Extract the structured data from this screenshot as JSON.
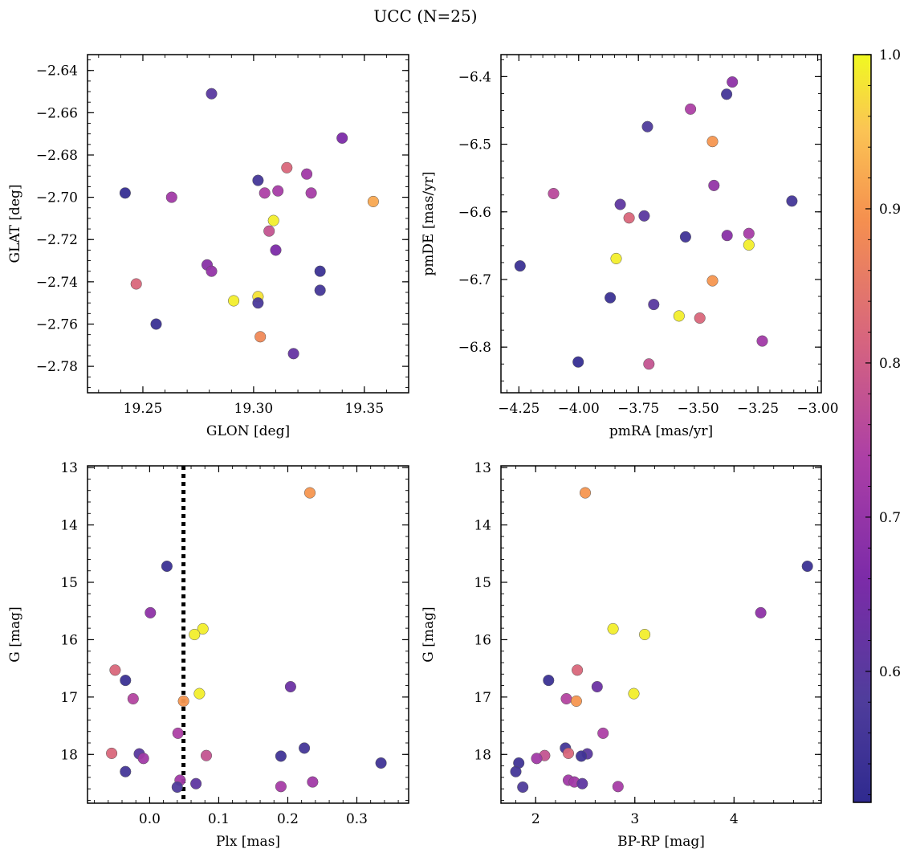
{
  "figure": {
    "suptitle": "UCC (N=25)",
    "colorbar": {
      "min": 0.515,
      "max": 1.0,
      "ticks": [
        0.6,
        0.7,
        0.8,
        0.9,
        1.0
      ],
      "tick_labels": [
        "0.6",
        "0.7",
        "0.8",
        "0.9",
        "1.0"
      ],
      "colormap": "plasma"
    }
  },
  "chart_data": [
    {
      "type": "scatter",
      "id": "glon-glat",
      "xlabel": "GLON [deg]",
      "ylabel": "GLAT [deg]",
      "xlim": [
        19.225,
        19.37
      ],
      "ylim": [
        -2.7925,
        -2.6325
      ],
      "xticks": [
        19.25,
        19.3,
        19.35
      ],
      "xtick_labels": [
        "19.25",
        "19.30",
        "19.35"
      ],
      "yticks": [
        -2.64,
        -2.66,
        -2.68,
        -2.7,
        -2.72,
        -2.74,
        -2.76,
        -2.78
      ],
      "ytick_labels": [
        "−2.64",
        "−2.66",
        "−2.68",
        "−2.70",
        "−2.72",
        "−2.74",
        "−2.76",
        "−2.78"
      ],
      "inverted_y": false,
      "points": [
        {
          "x": 19.242,
          "y": -2.698,
          "c": 0.53
        },
        {
          "x": 19.256,
          "y": -2.76,
          "c": 0.54
        },
        {
          "x": 19.247,
          "y": -2.741,
          "c": 0.82
        },
        {
          "x": 19.263,
          "y": -2.7,
          "c": 0.72
        },
        {
          "x": 19.279,
          "y": -2.732,
          "c": 0.68
        },
        {
          "x": 19.281,
          "y": -2.735,
          "c": 0.7
        },
        {
          "x": 19.281,
          "y": -2.651,
          "c": 0.6
        },
        {
          "x": 19.291,
          "y": -2.749,
          "c": 0.99
        },
        {
          "x": 19.302,
          "y": -2.747,
          "c": 0.98
        },
        {
          "x": 19.302,
          "y": -2.75,
          "c": 0.57
        },
        {
          "x": 19.302,
          "y": -2.692,
          "c": 0.56
        },
        {
          "x": 19.303,
          "y": -2.766,
          "c": 0.88
        },
        {
          "x": 19.305,
          "y": -2.698,
          "c": 0.74
        },
        {
          "x": 19.307,
          "y": -2.716,
          "c": 0.78
        },
        {
          "x": 19.309,
          "y": -2.711,
          "c": 0.99
        },
        {
          "x": 19.31,
          "y": -2.725,
          "c": 0.66
        },
        {
          "x": 19.311,
          "y": -2.697,
          "c": 0.73
        },
        {
          "x": 19.315,
          "y": -2.686,
          "c": 0.82
        },
        {
          "x": 19.318,
          "y": -2.774,
          "c": 0.62
        },
        {
          "x": 19.324,
          "y": -2.689,
          "c": 0.72
        },
        {
          "x": 19.326,
          "y": -2.698,
          "c": 0.73
        },
        {
          "x": 19.33,
          "y": -2.735,
          "c": 0.54
        },
        {
          "x": 19.33,
          "y": -2.744,
          "c": 0.56
        },
        {
          "x": 19.34,
          "y": -2.672,
          "c": 0.66
        },
        {
          "x": 19.354,
          "y": -2.702,
          "c": 0.92
        }
      ]
    },
    {
      "type": "scatter",
      "id": "pmra-pmde",
      "xlabel": "pmRA [mas/yr]",
      "ylabel": "pmDE [mas/yr]",
      "xlim": [
        -4.325,
        -2.985
      ],
      "ylim": [
        -6.8675,
        -6.3675
      ],
      "xticks": [
        -4.25,
        -4.0,
        -3.75,
        -3.5,
        -3.25,
        -3.0
      ],
      "xtick_labels": [
        "−4.25",
        "−4.00",
        "−3.75",
        "−3.50",
        "−3.25",
        "−3.00"
      ],
      "yticks": [
        -6.4,
        -6.5,
        -6.6,
        -6.7,
        -6.8
      ],
      "ytick_labels": [
        "−6.4",
        "−6.5",
        "−6.6",
        "−6.7",
        "−6.8"
      ],
      "inverted_y": false,
      "points": [
        {
          "x": -4.245,
          "y": -6.68,
          "c": 0.54
        },
        {
          "x": -4.105,
          "y": -6.573,
          "c": 0.76
        },
        {
          "x": -4.002,
          "y": -6.822,
          "c": 0.53
        },
        {
          "x": -3.868,
          "y": -6.727,
          "c": 0.54
        },
        {
          "x": -3.843,
          "y": -6.669,
          "c": 0.99
        },
        {
          "x": -3.826,
          "y": -6.589,
          "c": 0.61
        },
        {
          "x": -3.789,
          "y": -6.609,
          "c": 0.82
        },
        {
          "x": -3.726,
          "y": -6.606,
          "c": 0.6
        },
        {
          "x": -3.712,
          "y": -6.474,
          "c": 0.58
        },
        {
          "x": -3.706,
          "y": -6.825,
          "c": 0.78
        },
        {
          "x": -3.686,
          "y": -6.737,
          "c": 0.6
        },
        {
          "x": -3.58,
          "y": -6.754,
          "c": 0.99
        },
        {
          "x": -3.553,
          "y": -6.637,
          "c": 0.55
        },
        {
          "x": -3.532,
          "y": -6.448,
          "c": 0.74
        },
        {
          "x": -3.493,
          "y": -6.757,
          "c": 0.82
        },
        {
          "x": -3.44,
          "y": -6.702,
          "c": 0.9
        },
        {
          "x": -3.44,
          "y": -6.496,
          "c": 0.9
        },
        {
          "x": -3.434,
          "y": -6.561,
          "c": 0.7
        },
        {
          "x": -3.381,
          "y": -6.426,
          "c": 0.56
        },
        {
          "x": -3.379,
          "y": -6.635,
          "c": 0.68
        },
        {
          "x": -3.357,
          "y": -6.408,
          "c": 0.69
        },
        {
          "x": -3.288,
          "y": -6.632,
          "c": 0.73
        },
        {
          "x": -3.288,
          "y": -6.649,
          "c": 0.99
        },
        {
          "x": -3.232,
          "y": -6.791,
          "c": 0.72
        },
        {
          "x": -3.108,
          "y": -6.584,
          "c": 0.56
        }
      ]
    },
    {
      "type": "scatter",
      "id": "plx-g",
      "xlabel": "Plx [mas]",
      "ylabel": "G [mag]",
      "xlim": [
        -0.09,
        0.375
      ],
      "ylim": [
        12.97,
        18.85
      ],
      "xticks": [
        0.0,
        0.1,
        0.2,
        0.3
      ],
      "xtick_labels": [
        "0.0",
        "0.1",
        "0.2",
        "0.3"
      ],
      "yticks": [
        13,
        14,
        15,
        16,
        17,
        18
      ],
      "ytick_labels": [
        "13",
        "14",
        "15",
        "16",
        "17",
        "18"
      ],
      "inverted_y": true,
      "vline": {
        "x": 0.049,
        "style": "dotted"
      },
      "points": [
        {
          "x": 0.232,
          "y": 13.44,
          "c": 0.9
        },
        {
          "x": 0.025,
          "y": 14.72,
          "c": 0.54
        },
        {
          "x": 0.001,
          "y": 15.53,
          "c": 0.69
        },
        {
          "x": 0.077,
          "y": 15.81,
          "c": 0.99
        },
        {
          "x": 0.065,
          "y": 15.91,
          "c": 0.99
        },
        {
          "x": -0.05,
          "y": 16.53,
          "c": 0.82
        },
        {
          "x": -0.035,
          "y": 16.71,
          "c": 0.54
        },
        {
          "x": 0.204,
          "y": 16.82,
          "c": 0.63
        },
        {
          "x": 0.072,
          "y": 16.94,
          "c": 0.99
        },
        {
          "x": -0.024,
          "y": 17.03,
          "c": 0.75
        },
        {
          "x": 0.049,
          "y": 17.07,
          "c": 0.9
        },
        {
          "x": 0.041,
          "y": 17.63,
          "c": 0.74
        },
        {
          "x": 0.224,
          "y": 17.89,
          "c": 0.56
        },
        {
          "x": -0.055,
          "y": 17.98,
          "c": 0.82
        },
        {
          "x": -0.015,
          "y": 17.99,
          "c": 0.6
        },
        {
          "x": 0.082,
          "y": 18.02,
          "c": 0.78
        },
        {
          "x": 0.19,
          "y": 18.03,
          "c": 0.55
        },
        {
          "x": -0.009,
          "y": 18.07,
          "c": 0.72
        },
        {
          "x": 0.335,
          "y": 18.15,
          "c": 0.55
        },
        {
          "x": -0.035,
          "y": 18.3,
          "c": 0.56
        },
        {
          "x": 0.044,
          "y": 18.45,
          "c": 0.72
        },
        {
          "x": 0.236,
          "y": 18.48,
          "c": 0.72
        },
        {
          "x": 0.067,
          "y": 18.51,
          "c": 0.61
        },
        {
          "x": 0.04,
          "y": 18.57,
          "c": 0.58
        },
        {
          "x": 0.19,
          "y": 18.56,
          "c": 0.73
        }
      ]
    },
    {
      "type": "scatter",
      "id": "bprp-g",
      "xlabel": "BP-RP [mag]",
      "ylabel": "G [mag]",
      "xlim": [
        1.65,
        4.88
      ],
      "ylim": [
        12.97,
        18.85
      ],
      "xticks": [
        2,
        3,
        4
      ],
      "xtick_labels": [
        "2",
        "3",
        "4"
      ],
      "yticks": [
        13,
        14,
        15,
        16,
        17,
        18
      ],
      "ytick_labels": [
        "13",
        "14",
        "15",
        "16",
        "17",
        "18"
      ],
      "inverted_y": true,
      "points": [
        {
          "x": 2.5,
          "y": 13.44,
          "c": 0.9
        },
        {
          "x": 4.74,
          "y": 14.72,
          "c": 0.54
        },
        {
          "x": 4.27,
          "y": 15.53,
          "c": 0.69
        },
        {
          "x": 2.78,
          "y": 15.81,
          "c": 0.99
        },
        {
          "x": 3.1,
          "y": 15.91,
          "c": 0.99
        },
        {
          "x": 2.42,
          "y": 16.53,
          "c": 0.82
        },
        {
          "x": 2.13,
          "y": 16.71,
          "c": 0.54
        },
        {
          "x": 2.62,
          "y": 16.82,
          "c": 0.63
        },
        {
          "x": 2.99,
          "y": 16.94,
          "c": 0.99
        },
        {
          "x": 2.31,
          "y": 17.03,
          "c": 0.75
        },
        {
          "x": 2.41,
          "y": 17.07,
          "c": 0.9
        },
        {
          "x": 2.68,
          "y": 17.63,
          "c": 0.74
        },
        {
          "x": 2.3,
          "y": 17.89,
          "c": 0.56
        },
        {
          "x": 2.33,
          "y": 17.98,
          "c": 0.82
        },
        {
          "x": 2.52,
          "y": 17.99,
          "c": 0.6
        },
        {
          "x": 2.09,
          "y": 18.02,
          "c": 0.78
        },
        {
          "x": 2.46,
          "y": 18.03,
          "c": 0.55
        },
        {
          "x": 2.01,
          "y": 18.07,
          "c": 0.72
        },
        {
          "x": 1.83,
          "y": 18.15,
          "c": 0.55
        },
        {
          "x": 1.8,
          "y": 18.3,
          "c": 0.56
        },
        {
          "x": 2.33,
          "y": 18.45,
          "c": 0.72
        },
        {
          "x": 2.39,
          "y": 18.48,
          "c": 0.72
        },
        {
          "x": 2.47,
          "y": 18.51,
          "c": 0.61
        },
        {
          "x": 1.87,
          "y": 18.57,
          "c": 0.58
        },
        {
          "x": 2.83,
          "y": 18.56,
          "c": 0.73
        }
      ]
    }
  ]
}
